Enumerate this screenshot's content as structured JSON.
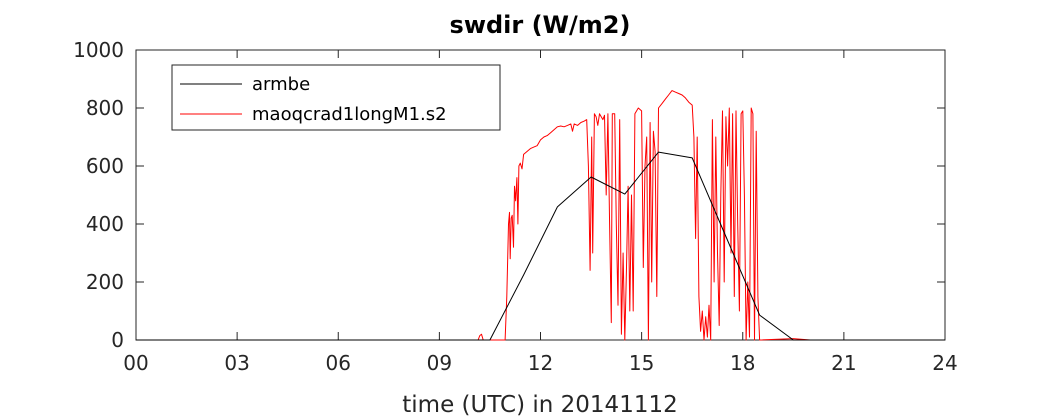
{
  "chart_data": {
    "type": "line",
    "title": "swdir  (W/m2)",
    "xlabel": "time (UTC) in 20141112",
    "ylabel": "",
    "xlim": [
      0,
      24
    ],
    "ylim": [
      0,
      1000
    ],
    "xticks": [
      0,
      3,
      6,
      9,
      12,
      15,
      18,
      21,
      24
    ],
    "xtick_labels": [
      "00",
      "03",
      "06",
      "09",
      "12",
      "15",
      "18",
      "21",
      "24"
    ],
    "yticks": [
      0,
      200,
      400,
      600,
      800,
      1000
    ],
    "ytick_labels": [
      "0",
      "200",
      "400",
      "600",
      "800",
      "1000"
    ],
    "grid": false,
    "legend_position": "top-left",
    "series": [
      {
        "name": "armbe",
        "color": "#000000",
        "points": [
          [
            0,
            0
          ],
          [
            0.5,
            0
          ],
          [
            1.5,
            0
          ],
          [
            2.5,
            0
          ],
          [
            3.5,
            0
          ],
          [
            4.5,
            0
          ],
          [
            5.5,
            0
          ],
          [
            6.5,
            0
          ],
          [
            7.5,
            0
          ],
          [
            8.5,
            0
          ],
          [
            9.5,
            0
          ],
          [
            10.5,
            0
          ],
          [
            11.5,
            224
          ],
          [
            12.5,
            459
          ],
          [
            13.5,
            562
          ],
          [
            14.5,
            503
          ],
          [
            15.5,
            648
          ],
          [
            16.5,
            628
          ],
          [
            17.5,
            357
          ],
          [
            18.5,
            86
          ],
          [
            19.5,
            0
          ],
          [
            20.5,
            0
          ],
          [
            21.5,
            0
          ],
          [
            22.5,
            0
          ],
          [
            23.5,
            0
          ],
          [
            24,
            0
          ]
        ]
      },
      {
        "name": "maoqcrad1longM1.s2",
        "color": "#ff0000",
        "points": [
          [
            0,
            0
          ],
          [
            10.15,
            0
          ],
          [
            10.2,
            15
          ],
          [
            10.25,
            20
          ],
          [
            10.3,
            0
          ],
          [
            10.95,
            0
          ],
          [
            11.0,
            150
          ],
          [
            11.05,
            400
          ],
          [
            11.08,
            440
          ],
          [
            11.1,
            280
          ],
          [
            11.13,
            420
          ],
          [
            11.16,
            430
          ],
          [
            11.2,
            320
          ],
          [
            11.23,
            530
          ],
          [
            11.26,
            480
          ],
          [
            11.3,
            560
          ],
          [
            11.33,
            400
          ],
          [
            11.36,
            600
          ],
          [
            11.4,
            610
          ],
          [
            11.45,
            590
          ],
          [
            11.5,
            640
          ],
          [
            11.6,
            650
          ],
          [
            11.7,
            660
          ],
          [
            11.8,
            665
          ],
          [
            11.9,
            670
          ],
          [
            12.0,
            690
          ],
          [
            12.1,
            700
          ],
          [
            12.2,
            705
          ],
          [
            12.3,
            715
          ],
          [
            12.4,
            725
          ],
          [
            12.5,
            735
          ],
          [
            12.6,
            738
          ],
          [
            12.7,
            735
          ],
          [
            12.8,
            740
          ],
          [
            12.9,
            745
          ],
          [
            12.95,
            720
          ],
          [
            13.0,
            745
          ],
          [
            13.1,
            740
          ],
          [
            13.2,
            750
          ],
          [
            13.3,
            755
          ],
          [
            13.37,
            760
          ],
          [
            13.42,
            600
          ],
          [
            13.47,
            240
          ],
          [
            13.52,
            700
          ],
          [
            13.55,
            300
          ],
          [
            13.6,
            780
          ],
          [
            13.65,
            770
          ],
          [
            13.7,
            740
          ],
          [
            13.75,
            780
          ],
          [
            13.8,
            770
          ],
          [
            13.85,
            760
          ],
          [
            13.9,
            775
          ],
          [
            13.95,
            500
          ],
          [
            14.0,
            780
          ],
          [
            14.05,
            400
          ],
          [
            14.1,
            60
          ],
          [
            14.13,
            780
          ],
          [
            14.2,
            780
          ],
          [
            14.25,
            400
          ],
          [
            14.3,
            120
          ],
          [
            14.35,
            760
          ],
          [
            14.4,
            20
          ],
          [
            14.45,
            300
          ],
          [
            14.5,
            0
          ],
          [
            14.55,
            250
          ],
          [
            14.6,
            530
          ],
          [
            14.65,
            100
          ],
          [
            14.7,
            500
          ],
          [
            14.75,
            100
          ],
          [
            14.8,
            780
          ],
          [
            14.9,
            800
          ],
          [
            15.0,
            790
          ],
          [
            15.05,
            250
          ],
          [
            15.1,
            600
          ],
          [
            15.15,
            700
          ],
          [
            15.2,
            0
          ],
          [
            15.25,
            750
          ],
          [
            15.3,
            200
          ],
          [
            15.35,
            720
          ],
          [
            15.4,
            650
          ],
          [
            15.45,
            150
          ],
          [
            15.5,
            800
          ],
          [
            15.6,
            815
          ],
          [
            15.7,
            830
          ],
          [
            15.8,
            845
          ],
          [
            15.9,
            860
          ],
          [
            16.0,
            855
          ],
          [
            16.1,
            850
          ],
          [
            16.2,
            845
          ],
          [
            16.3,
            835
          ],
          [
            16.4,
            820
          ],
          [
            16.5,
            810
          ],
          [
            16.55,
            700
          ],
          [
            16.6,
            350
          ],
          [
            16.65,
            700
          ],
          [
            16.7,
            150
          ],
          [
            16.75,
            30
          ],
          [
            16.8,
            100
          ],
          [
            16.85,
            0
          ],
          [
            16.9,
            80
          ],
          [
            16.95,
            10
          ],
          [
            17.0,
            120
          ],
          [
            17.05,
            0
          ],
          [
            17.1,
            760
          ],
          [
            17.15,
            200
          ],
          [
            17.2,
            700
          ],
          [
            17.25,
            300
          ],
          [
            17.3,
            50
          ],
          [
            17.35,
            500
          ],
          [
            17.4,
            790
          ],
          [
            17.45,
            200
          ],
          [
            17.5,
            770
          ],
          [
            17.55,
            600
          ],
          [
            17.6,
            800
          ],
          [
            17.65,
            300
          ],
          [
            17.7,
            780
          ],
          [
            17.75,
            150
          ],
          [
            17.8,
            790
          ],
          [
            17.85,
            400
          ],
          [
            17.9,
            100
          ],
          [
            17.95,
            780
          ],
          [
            18.0,
            790
          ],
          [
            18.05,
            500
          ],
          [
            18.1,
            0
          ],
          [
            18.15,
            200
          ],
          [
            18.2,
            10
          ],
          [
            18.25,
            800
          ],
          [
            18.3,
            780
          ],
          [
            18.35,
            0
          ],
          [
            18.4,
            720
          ],
          [
            18.45,
            150
          ],
          [
            18.5,
            0
          ],
          [
            19.5,
            5
          ],
          [
            20,
            0
          ],
          [
            24,
            0
          ]
        ]
      }
    ]
  }
}
